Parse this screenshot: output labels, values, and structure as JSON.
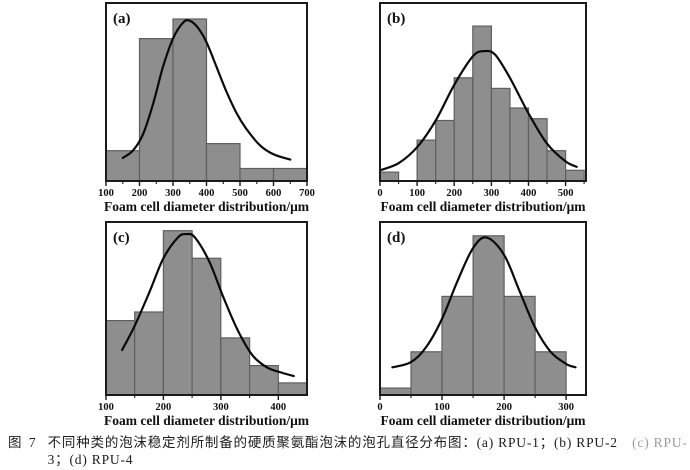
{
  "figure": {
    "caption": {
      "tag": "图 7",
      "line1": "不同种类的泡沫稳定剂所制备的硬质聚氨酯泡沫的泡孔直径分布图：(a) RPU-1；(b) RPU-2",
      "line1_faded": "　(c) RPU-",
      "line2": "3；(d) RPU-4"
    },
    "style": {
      "bar_fill": "#8e8e8e",
      "bar_stroke": "#5f5f5f",
      "curve_color": "#0a0a0a",
      "border_color": "#1a1a1a",
      "text_color": "#111111",
      "background": "#ffffff"
    }
  },
  "chart_data": [
    {
      "type": "bar",
      "panel_label": "(a)",
      "sample_name": "RPU-1",
      "xlabel": "Foam cell diameter distribution/μm",
      "ylabel": "",
      "xlim": [
        100,
        700
      ],
      "xticks": [
        100,
        200,
        300,
        400,
        500,
        600,
        700
      ],
      "minor_ticks": [
        150,
        250,
        350,
        450,
        550,
        650
      ],
      "note": "bin format [x_start, x_end, relative_height 0-1]; no y axis shown",
      "bins": [
        [
          100,
          200,
          0.17
        ],
        [
          200,
          300,
          0.8
        ],
        [
          300,
          400,
          0.91
        ],
        [
          400,
          500,
          0.21
        ],
        [
          500,
          600,
          0.07
        ],
        [
          600,
          700,
          0.07
        ]
      ],
      "curve": {
        "type": "line",
        "x": [
          150,
          180,
          210,
          240,
          270,
          300,
          330,
          350,
          375,
          400,
          430,
          460,
          490,
          520,
          560,
          600,
          650
        ],
        "y": [
          0.13,
          0.17,
          0.26,
          0.43,
          0.64,
          0.8,
          0.89,
          0.9,
          0.86,
          0.78,
          0.64,
          0.5,
          0.38,
          0.29,
          0.2,
          0.15,
          0.12
        ]
      }
    },
    {
      "type": "bar",
      "panel_label": "(b)",
      "sample_name": "RPU-2",
      "xlabel": "Foam cell diameter distribution/μm",
      "ylabel": "",
      "xlim": [
        0,
        555
      ],
      "xticks": [
        0,
        100,
        200,
        300,
        400,
        500
      ],
      "minor_ticks": [
        50,
        150,
        250,
        350,
        450,
        550
      ],
      "note": "bin format [x_start, x_end, relative_height 0-1]; gap (no bar) from 50-100",
      "bins": [
        [
          0,
          50,
          0.05
        ],
        [
          100,
          150,
          0.23
        ],
        [
          150,
          200,
          0.34
        ],
        [
          200,
          250,
          0.58
        ],
        [
          250,
          300,
          0.87
        ],
        [
          300,
          350,
          0.52
        ],
        [
          350,
          400,
          0.41
        ],
        [
          400,
          450,
          0.35
        ],
        [
          450,
          500,
          0.17
        ],
        [
          500,
          550,
          0.06
        ]
      ],
      "curve": {
        "type": "line",
        "x": [
          0,
          50,
          100,
          150,
          200,
          250,
          280,
          310,
          350,
          400,
          450,
          500,
          530
        ],
        "y": [
          0.06,
          0.1,
          0.19,
          0.34,
          0.54,
          0.7,
          0.73,
          0.71,
          0.58,
          0.38,
          0.21,
          0.11,
          0.08
        ]
      }
    },
    {
      "type": "bar",
      "panel_label": "(c)",
      "sample_name": "RPU-3",
      "xlabel": "Foam cell diameter distribution/μm",
      "ylabel": "",
      "xlim": [
        100,
        450
      ],
      "xticks": [
        100,
        200,
        300,
        400
      ],
      "minor_ticks": [
        150,
        250,
        350
      ],
      "note": "bin format [x_start, x_end, relative_height 0-1]",
      "bins": [
        [
          100,
          150,
          0.43
        ],
        [
          150,
          200,
          0.48
        ],
        [
          200,
          250,
          0.95
        ],
        [
          250,
          300,
          0.79
        ],
        [
          300,
          350,
          0.33
        ],
        [
          350,
          400,
          0.17
        ],
        [
          400,
          450,
          0.07
        ]
      ],
      "curve": {
        "type": "line",
        "x": [
          128,
          150,
          175,
          200,
          225,
          240,
          255,
          280,
          305,
          330,
          355,
          380,
          405,
          427
        ],
        "y": [
          0.26,
          0.4,
          0.59,
          0.79,
          0.91,
          0.93,
          0.91,
          0.77,
          0.56,
          0.37,
          0.23,
          0.16,
          0.13,
          0.11
        ]
      }
    },
    {
      "type": "bar",
      "panel_label": "(d)",
      "sample_name": "RPU-4",
      "xlabel": "Foam cell diameter distribution/μm",
      "ylabel": "",
      "xlim": [
        0,
        332
      ],
      "xticks": [
        0,
        100,
        200,
        300
      ],
      "minor_ticks": [
        50,
        150,
        250
      ],
      "note": "bin format [x_start, x_end, relative_height 0-1]",
      "bins": [
        [
          0,
          50,
          0.04
        ],
        [
          50,
          100,
          0.25
        ],
        [
          100,
          150,
          0.57
        ],
        [
          150,
          200,
          0.92
        ],
        [
          200,
          250,
          0.57
        ],
        [
          250,
          300,
          0.25
        ]
      ],
      "curve": {
        "type": "line",
        "x": [
          20,
          50,
          75,
          100,
          125,
          150,
          172,
          200,
          225,
          250,
          275,
          300,
          315
        ],
        "y": [
          0.16,
          0.19,
          0.28,
          0.44,
          0.66,
          0.85,
          0.91,
          0.81,
          0.6,
          0.39,
          0.25,
          0.18,
          0.16
        ]
      }
    }
  ]
}
